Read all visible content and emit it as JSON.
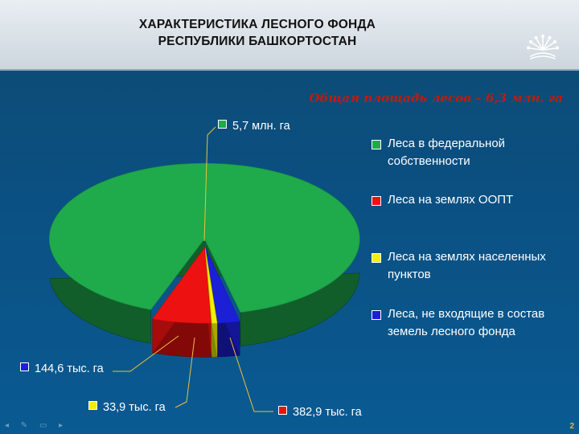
{
  "header": {
    "title_line1": "ХАРАКТЕРИСТИКА ЛЕСНОГО ФОНДА",
    "title_line2": "РЕСПУБЛИКИ БАШКОРТОСТАН"
  },
  "subtitle": "Общая площадь лесов – 6,3 млн. га",
  "page_number": "2",
  "colors": {
    "federal": "#1faa4c",
    "oopt": "#ee1111",
    "settlements": "#f4ee00",
    "other": "#1b1fd6",
    "leader_line": "#e8c33a"
  },
  "chart_data": {
    "type": "pie",
    "title": "Общая площадь лесов – 6,3 млн. га",
    "style": "3d-exploded",
    "legend_position": "right",
    "series": [
      {
        "name": "Леса в федеральной собственности",
        "value": 5700,
        "label": "5,7 млн. га",
        "color": "#1faa4c"
      },
      {
        "name": "Леса на землях ООПТ",
        "value": 382.9,
        "label": "382,9 тыс. га",
        "color": "#ee1111"
      },
      {
        "name": "Леса на землях населенных пунктов",
        "value": 33.9,
        "label": "33,9 тыс. га",
        "color": "#f4ee00"
      },
      {
        "name": "Леса, не входящие в состав земель лесного фонда",
        "value": 144.6,
        "label": "144,6 тыс. га",
        "color": "#1b1fd6"
      }
    ]
  }
}
